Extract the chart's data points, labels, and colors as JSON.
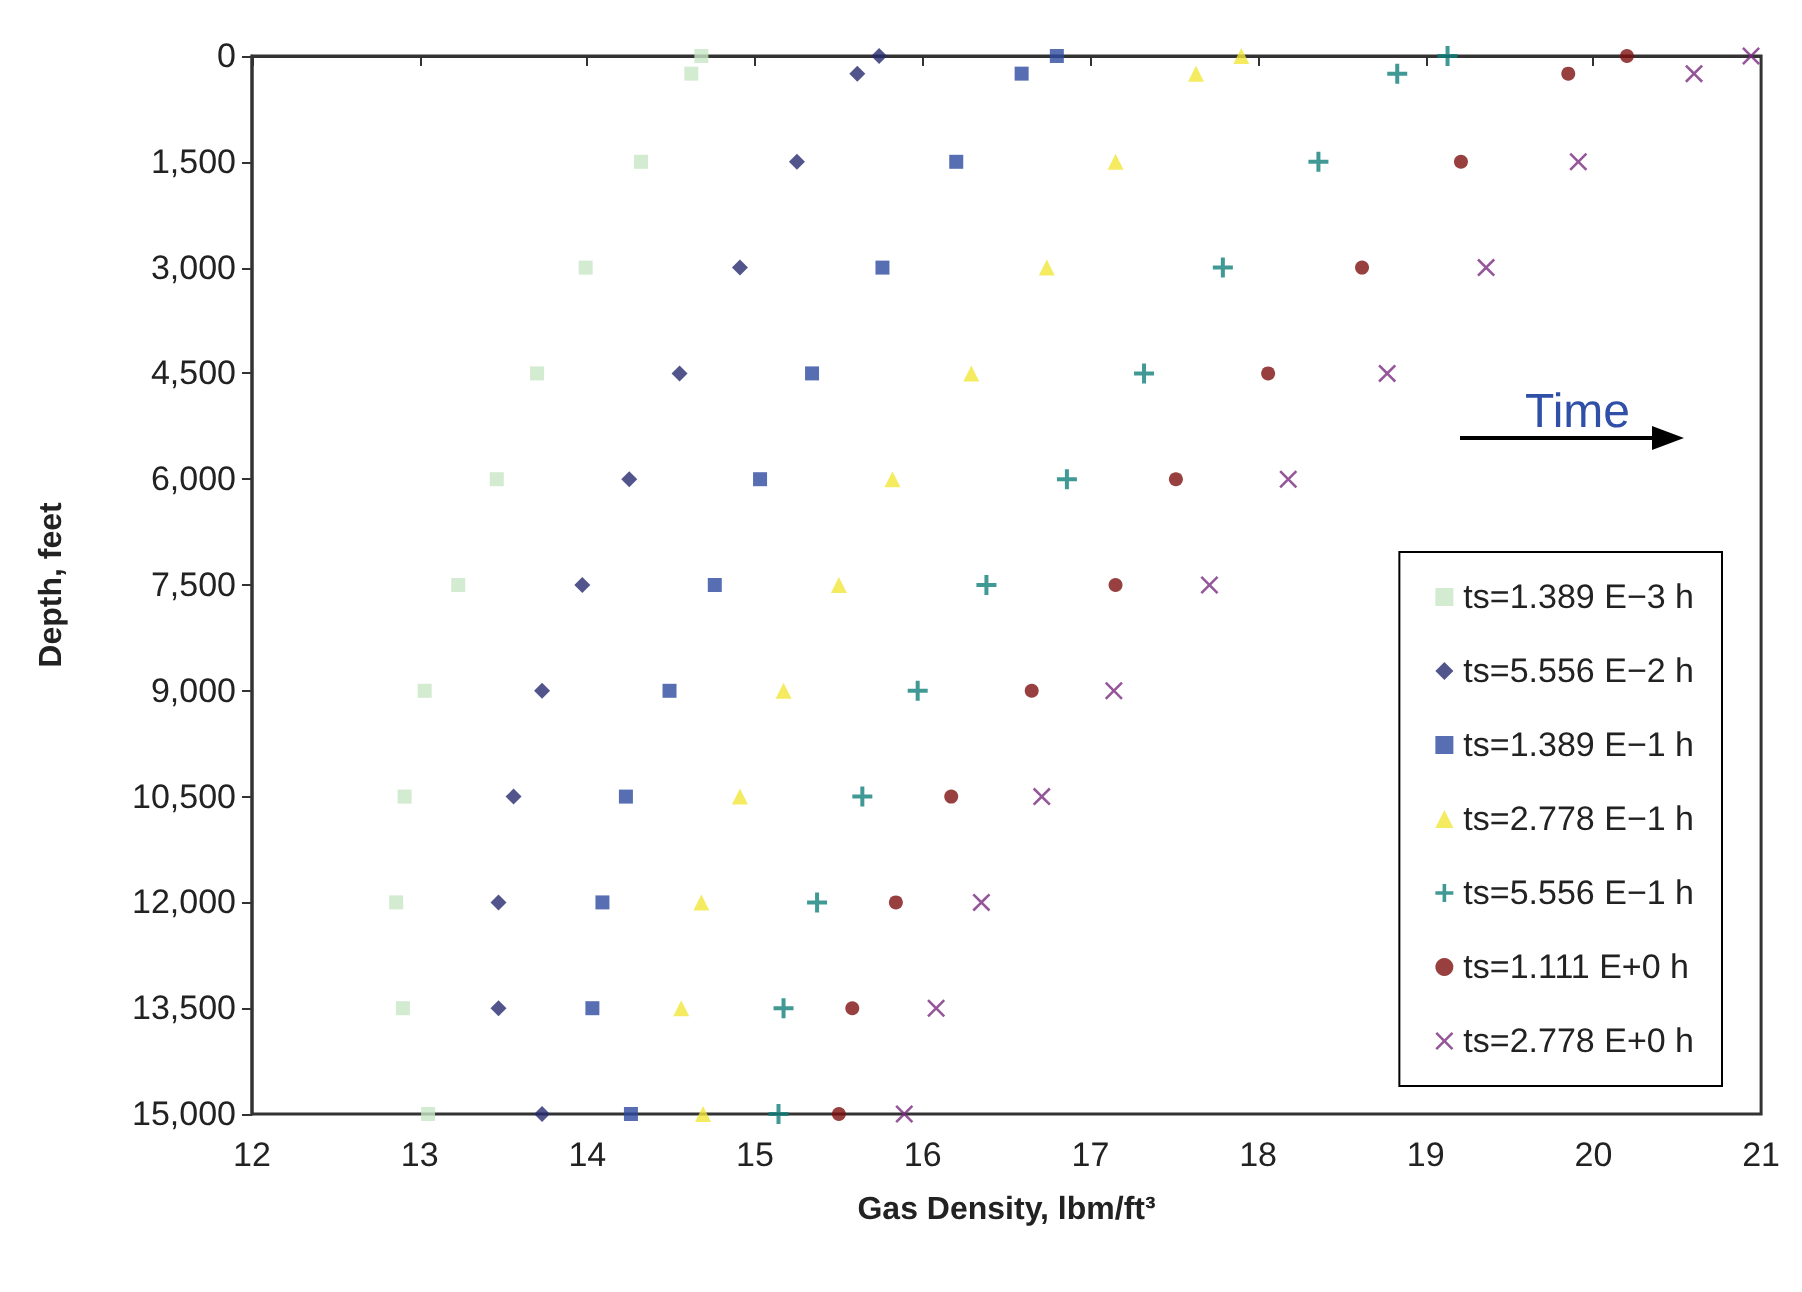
{
  "chart_data": {
    "type": "scatter",
    "xlabel": "Gas Density, lbm/ft³",
    "ylabel": "Depth, feet",
    "xlim": [
      12,
      21
    ],
    "xticks": [
      12,
      13,
      14,
      15,
      16,
      17,
      18,
      19,
      20,
      21
    ],
    "ylim": [
      15000,
      0
    ],
    "yticks": [
      0,
      {
        "value": 1500,
        "label": "1,500"
      },
      {
        "value": 3000,
        "label": "3,000"
      },
      {
        "value": 4500,
        "label": "4,500"
      },
      {
        "value": 6000,
        "label": "6,000"
      },
      {
        "value": 7500,
        "label": "7,500"
      },
      {
        "value": 9000,
        "label": "9,000"
      },
      {
        "value": 10500,
        "label": "10,500"
      },
      {
        "value": 12000,
        "label": "12,000"
      },
      {
        "value": 13500,
        "label": "13,500"
      },
      {
        "value": 15000,
        "label": "15,000"
      }
    ],
    "grid": false,
    "legend": "bottom right",
    "annotations": [
      "Time"
    ],
    "series": [
      {
        "name": "ts=1.389 E−3 h",
        "color": "#c8e6c4",
        "marker": "square",
        "x": [
          14.68,
          14.62,
          14.32,
          13.99,
          13.7,
          13.46,
          13.23,
          13.03,
          12.91,
          12.86,
          12.9,
          13.05
        ],
        "values": [
          0,
          250,
          1500,
          3000,
          4500,
          6000,
          7500,
          9000,
          10500,
          12000,
          13500,
          15000
        ]
      },
      {
        "name": "ts=5.556 E−2 h",
        "color": "#262a6e",
        "marker": "diamond",
        "x": [
          15.74,
          15.61,
          15.25,
          14.91,
          14.55,
          14.25,
          13.97,
          13.73,
          13.56,
          13.47,
          13.47,
          13.73
        ],
        "values": [
          0,
          250,
          1500,
          3000,
          4500,
          6000,
          7500,
          9000,
          10500,
          12000,
          13500,
          15000
        ]
      },
      {
        "name": "ts=1.389 E−1 h",
        "color": "#2e4aa0",
        "marker": "square",
        "x": [
          16.8,
          16.59,
          16.2,
          15.76,
          15.34,
          15.03,
          14.76,
          14.49,
          14.23,
          14.09,
          14.03,
          14.26
        ],
        "values": [
          0,
          250,
          1500,
          3000,
          4500,
          6000,
          7500,
          9000,
          10500,
          12000,
          13500,
          15000
        ]
      },
      {
        "name": "ts=2.778 E−1 h",
        "color": "#f2e63a",
        "marker": "triangle",
        "x": [
          17.9,
          17.63,
          17.15,
          16.74,
          16.29,
          15.82,
          15.5,
          15.17,
          14.91,
          14.68,
          14.56,
          14.69
        ],
        "values": [
          0,
          250,
          1500,
          3000,
          4500,
          6000,
          7500,
          9000,
          10500,
          12000,
          13500,
          15000
        ]
      },
      {
        "name": "ts=5.556 E−1 h",
        "color": "#127f7a",
        "marker": "cross",
        "x": [
          19.13,
          18.83,
          18.36,
          17.79,
          17.32,
          16.86,
          16.38,
          15.97,
          15.64,
          15.37,
          15.17,
          15.14
        ],
        "values": [
          0,
          250,
          1500,
          3000,
          4500,
          6000,
          7500,
          9000,
          10500,
          12000,
          13500,
          15000
        ]
      },
      {
        "name": "ts=1.111 E+0 h",
        "color": "#7e1010",
        "marker": "circle",
        "x": [
          20.2,
          19.85,
          19.21,
          18.62,
          18.06,
          17.51,
          17.15,
          16.65,
          16.17,
          15.84,
          15.58,
          15.5
        ],
        "values": [
          0,
          250,
          1500,
          3000,
          4500,
          6000,
          7500,
          9000,
          10500,
          12000,
          13500,
          15000
        ]
      },
      {
        "name": "ts=2.778 E+0 h",
        "color": "#7a2a80",
        "marker": "x",
        "x": [
          20.94,
          20.6,
          19.91,
          19.36,
          18.77,
          18.18,
          17.71,
          17.14,
          16.71,
          16.35,
          16.08,
          15.89
        ],
        "values": [
          0,
          250,
          1500,
          3000,
          4500,
          6000,
          7500,
          9000,
          10500,
          12000,
          13500,
          15000
        ]
      }
    ]
  }
}
